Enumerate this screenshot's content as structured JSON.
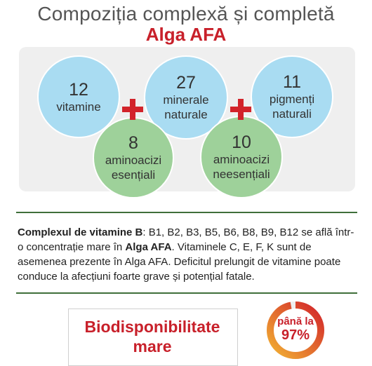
{
  "header": {
    "title": "Compoziția complexă și completă",
    "subtitle": "Alga AFA"
  },
  "circles": [
    {
      "number": "12",
      "line1": "vitamine",
      "line2": ""
    },
    {
      "number": "27",
      "line1": "minerale",
      "line2": "naturale"
    },
    {
      "number": "11",
      "line1": "pigmenți",
      "line2": "naturali"
    },
    {
      "number": "8",
      "line1": "aminoacizi",
      "line2": "esențiali"
    },
    {
      "number": "10",
      "line1": "aminoacizi",
      "line2": "neesențiali"
    }
  ],
  "description": {
    "lead": "Complexul de vitamine B",
    "part1": ": B1, B2, B3, B5, B6, B8, B9, B12 se află într-o concentrație mare în ",
    "brand": "Alga AFA",
    "part2": ". Vitaminele C, E, F, K sunt de asemenea prezente în Alga AFA. Deficitul prelungit de vitamine poate conduce la afecțiuni foarte grave și potențial fatale."
  },
  "bioavailability": {
    "line1": "Biodisponibilitate",
    "line2": "mare"
  },
  "gauge": {
    "prefix": "până la",
    "value_label": "97%",
    "fraction": 0.97,
    "colors": {
      "start": "#f2b233",
      "end": "#d2232a",
      "track": "#eeeeee"
    }
  },
  "colors": {
    "title_red": "#c8202a",
    "blue_circle": "#a9dcf2",
    "green_circle": "#9ed19a",
    "plus_red": "#d2232a",
    "rule_green": "#3f6f3a"
  }
}
